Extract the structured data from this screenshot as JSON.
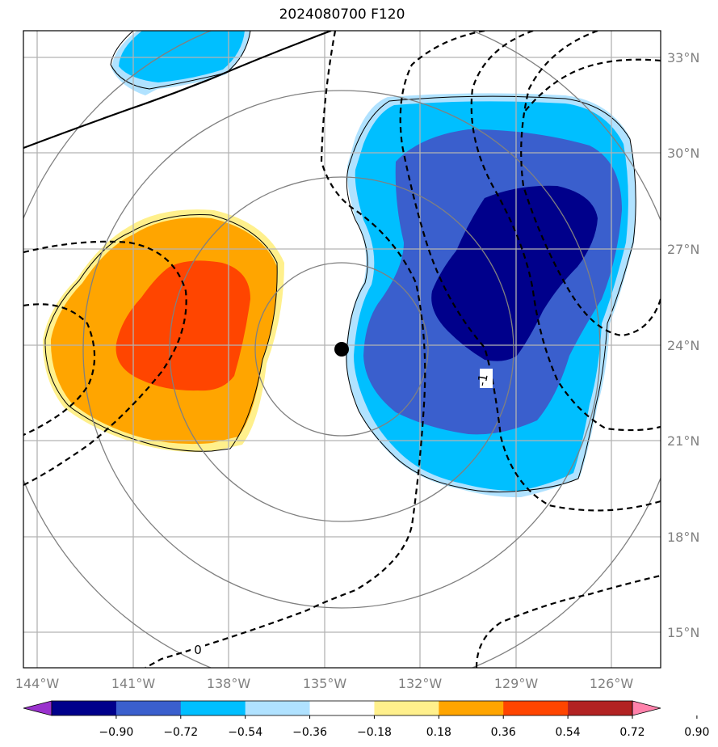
{
  "title": "2024080700 F120",
  "map": {
    "lon_ticks": [
      "144°W",
      "141°W",
      "138°W",
      "135°W",
      "132°W",
      "129°W",
      "126°W"
    ],
    "lat_ticks": [
      "33°N",
      "30°N",
      "27°N",
      "24°N",
      "21°N",
      "18°N",
      "15°N"
    ],
    "extent": {
      "lon": [
        -144.3,
        -124.3
      ],
      "lat": [
        13.9,
        33.8
      ]
    },
    "storm_center": {
      "lon": -134.5,
      "lat": 23.9
    }
  },
  "contour_labels": [
    "0",
    "-1"
  ],
  "colorbar": {
    "ticks": [
      "−0.90",
      "−0.72",
      "−0.54",
      "−0.36",
      "−0.18",
      "0.18",
      "0.36",
      "0.54",
      "0.72",
      "0.90"
    ],
    "colors": [
      "#9a32cd",
      "#00008b",
      "#3a5fcd",
      "#00bfff",
      "#b0e2ff",
      "#ffffff",
      "#fff08c",
      "#ffa500",
      "#ff4500",
      "#b22222",
      "#ff82ab"
    ]
  },
  "colors": {
    "deep_blue": "#00008b",
    "royal_blue": "#3a5fcd",
    "sky_blue": "#00bfff",
    "light_blue": "#b0e2ff",
    "light_yellow": "#fff08c",
    "orange": "#ffa500",
    "red_orange": "#ff4500"
  }
}
